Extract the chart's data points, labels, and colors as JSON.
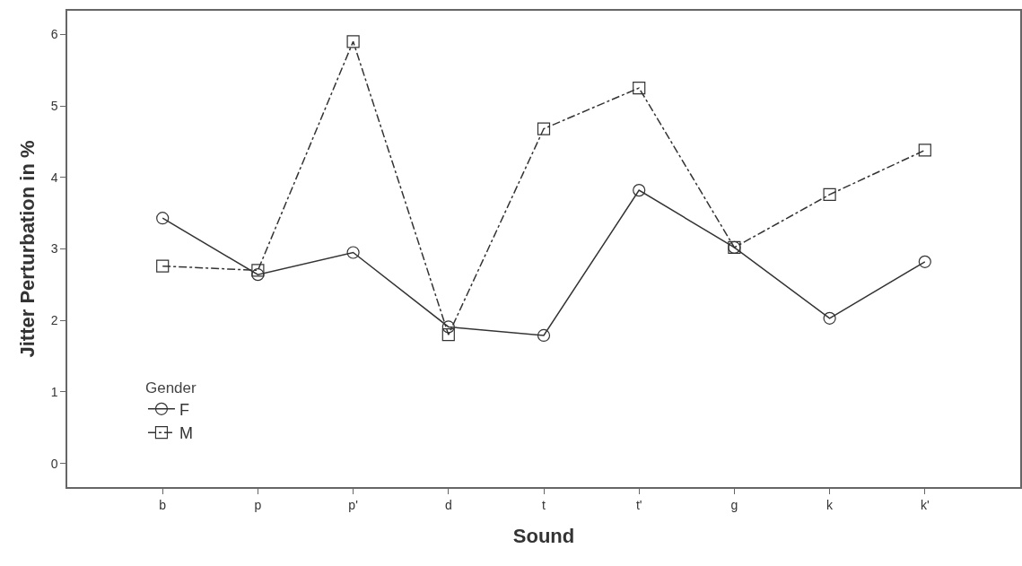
{
  "chart_data": {
    "type": "line",
    "xlabel": "Sound",
    "ylabel": "Jitter Perturbation in %",
    "legend_title": "Gender",
    "categories": [
      "b",
      "p",
      "p'",
      "d",
      "t",
      "t'",
      "g",
      "k",
      "k'"
    ],
    "series": [
      {
        "name": "F",
        "color": "#333333",
        "marker": "circle",
        "line_style": "solid",
        "values": [
          3.43,
          2.64,
          2.95,
          1.91,
          1.79,
          3.82,
          3.02,
          2.03,
          2.82
        ]
      },
      {
        "name": "M",
        "color": "#333333",
        "marker": "square",
        "line_style": "dashdot",
        "values": [
          2.76,
          2.7,
          5.9,
          1.8,
          4.68,
          5.25,
          3.02,
          3.76,
          4.38
        ]
      }
    ],
    "ylim": [
      -0.33,
      6.33
    ],
    "yticks": [
      0,
      1,
      2,
      3,
      4,
      5,
      6
    ],
    "grid": false,
    "legend": "bottom left"
  }
}
